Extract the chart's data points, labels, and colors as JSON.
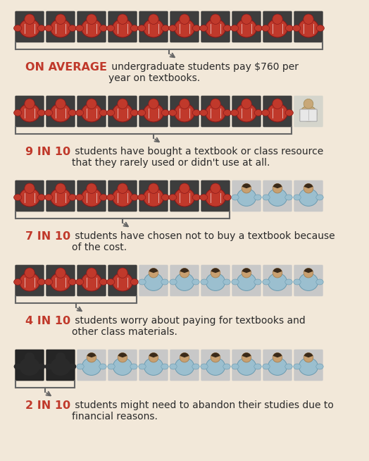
{
  "bg_color": "#f2e8d9",
  "red_color": "#c0392b",
  "dark_bg": "#3d3d3d",
  "light_bg": "#c8c8c8",
  "dark2_bg": "#2a2a2a",
  "blue_shirt": "#9bbfcf",
  "skin": "#c8a070",
  "rows": [
    {
      "n_red": 10,
      "n_total": 10,
      "type": "all_red",
      "bold": "ON AVERAGE",
      "text": " undergraduate students pay $760 per\nyear on textbooks."
    },
    {
      "n_red": 9,
      "n_total": 10,
      "type": "red_then_reading",
      "bold": "9 IN 10",
      "text": " students have bought a textbook or class resource\nthat they rarely used or didn't use at all."
    },
    {
      "n_red": 7,
      "n_total": 10,
      "type": "red_then_light",
      "bold": "7 IN 10",
      "text": " students have chosen not to buy a textbook because\nof the cost."
    },
    {
      "n_red": 4,
      "n_total": 10,
      "type": "red_then_blue",
      "bold": "4 IN 10",
      "text": " students worry about paying for textbooks and\nother class materials."
    },
    {
      "n_red": 2,
      "n_total": 10,
      "type": "dark_then_blue",
      "bold": "2 IN 10",
      "text": " students might need to abandon their studies due to\nfinancial reasons."
    }
  ],
  "figw": 5.24,
  "figh": 6.54,
  "dpi": 100
}
